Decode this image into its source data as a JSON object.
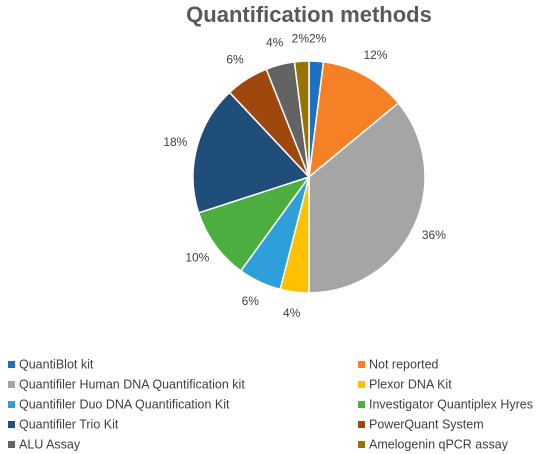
{
  "chart_data": {
    "type": "pie",
    "title": "Quantification methods",
    "categories": [
      "QuantiBlot kit",
      "Not reported",
      "Quantifiler Human DNA Quantification kit",
      "Plexor DNA Kit",
      "Quantifiler Duo DNA Quantification Kit",
      "Investigator Quantiplex Hyres",
      "Quantifiler Trio Kit",
      "PowerQuant System",
      "ALU Assay",
      "Amelogenin qPCR assay"
    ],
    "values": [
      2,
      12,
      36,
      4,
      6,
      10,
      18,
      6,
      4,
      2
    ],
    "value_labels": [
      "2%",
      "12%",
      "36%",
      "4%",
      "6%",
      "10%",
      "18%",
      "6%",
      "4%",
      "2%"
    ],
    "colors": [
      "#1f6fc5",
      "#f58025",
      "#a5a5a5",
      "#ffc000",
      "#2e9fd8",
      "#4cae3f",
      "#1f4e79",
      "#9e480e",
      "#636363",
      "#997300"
    ]
  }
}
